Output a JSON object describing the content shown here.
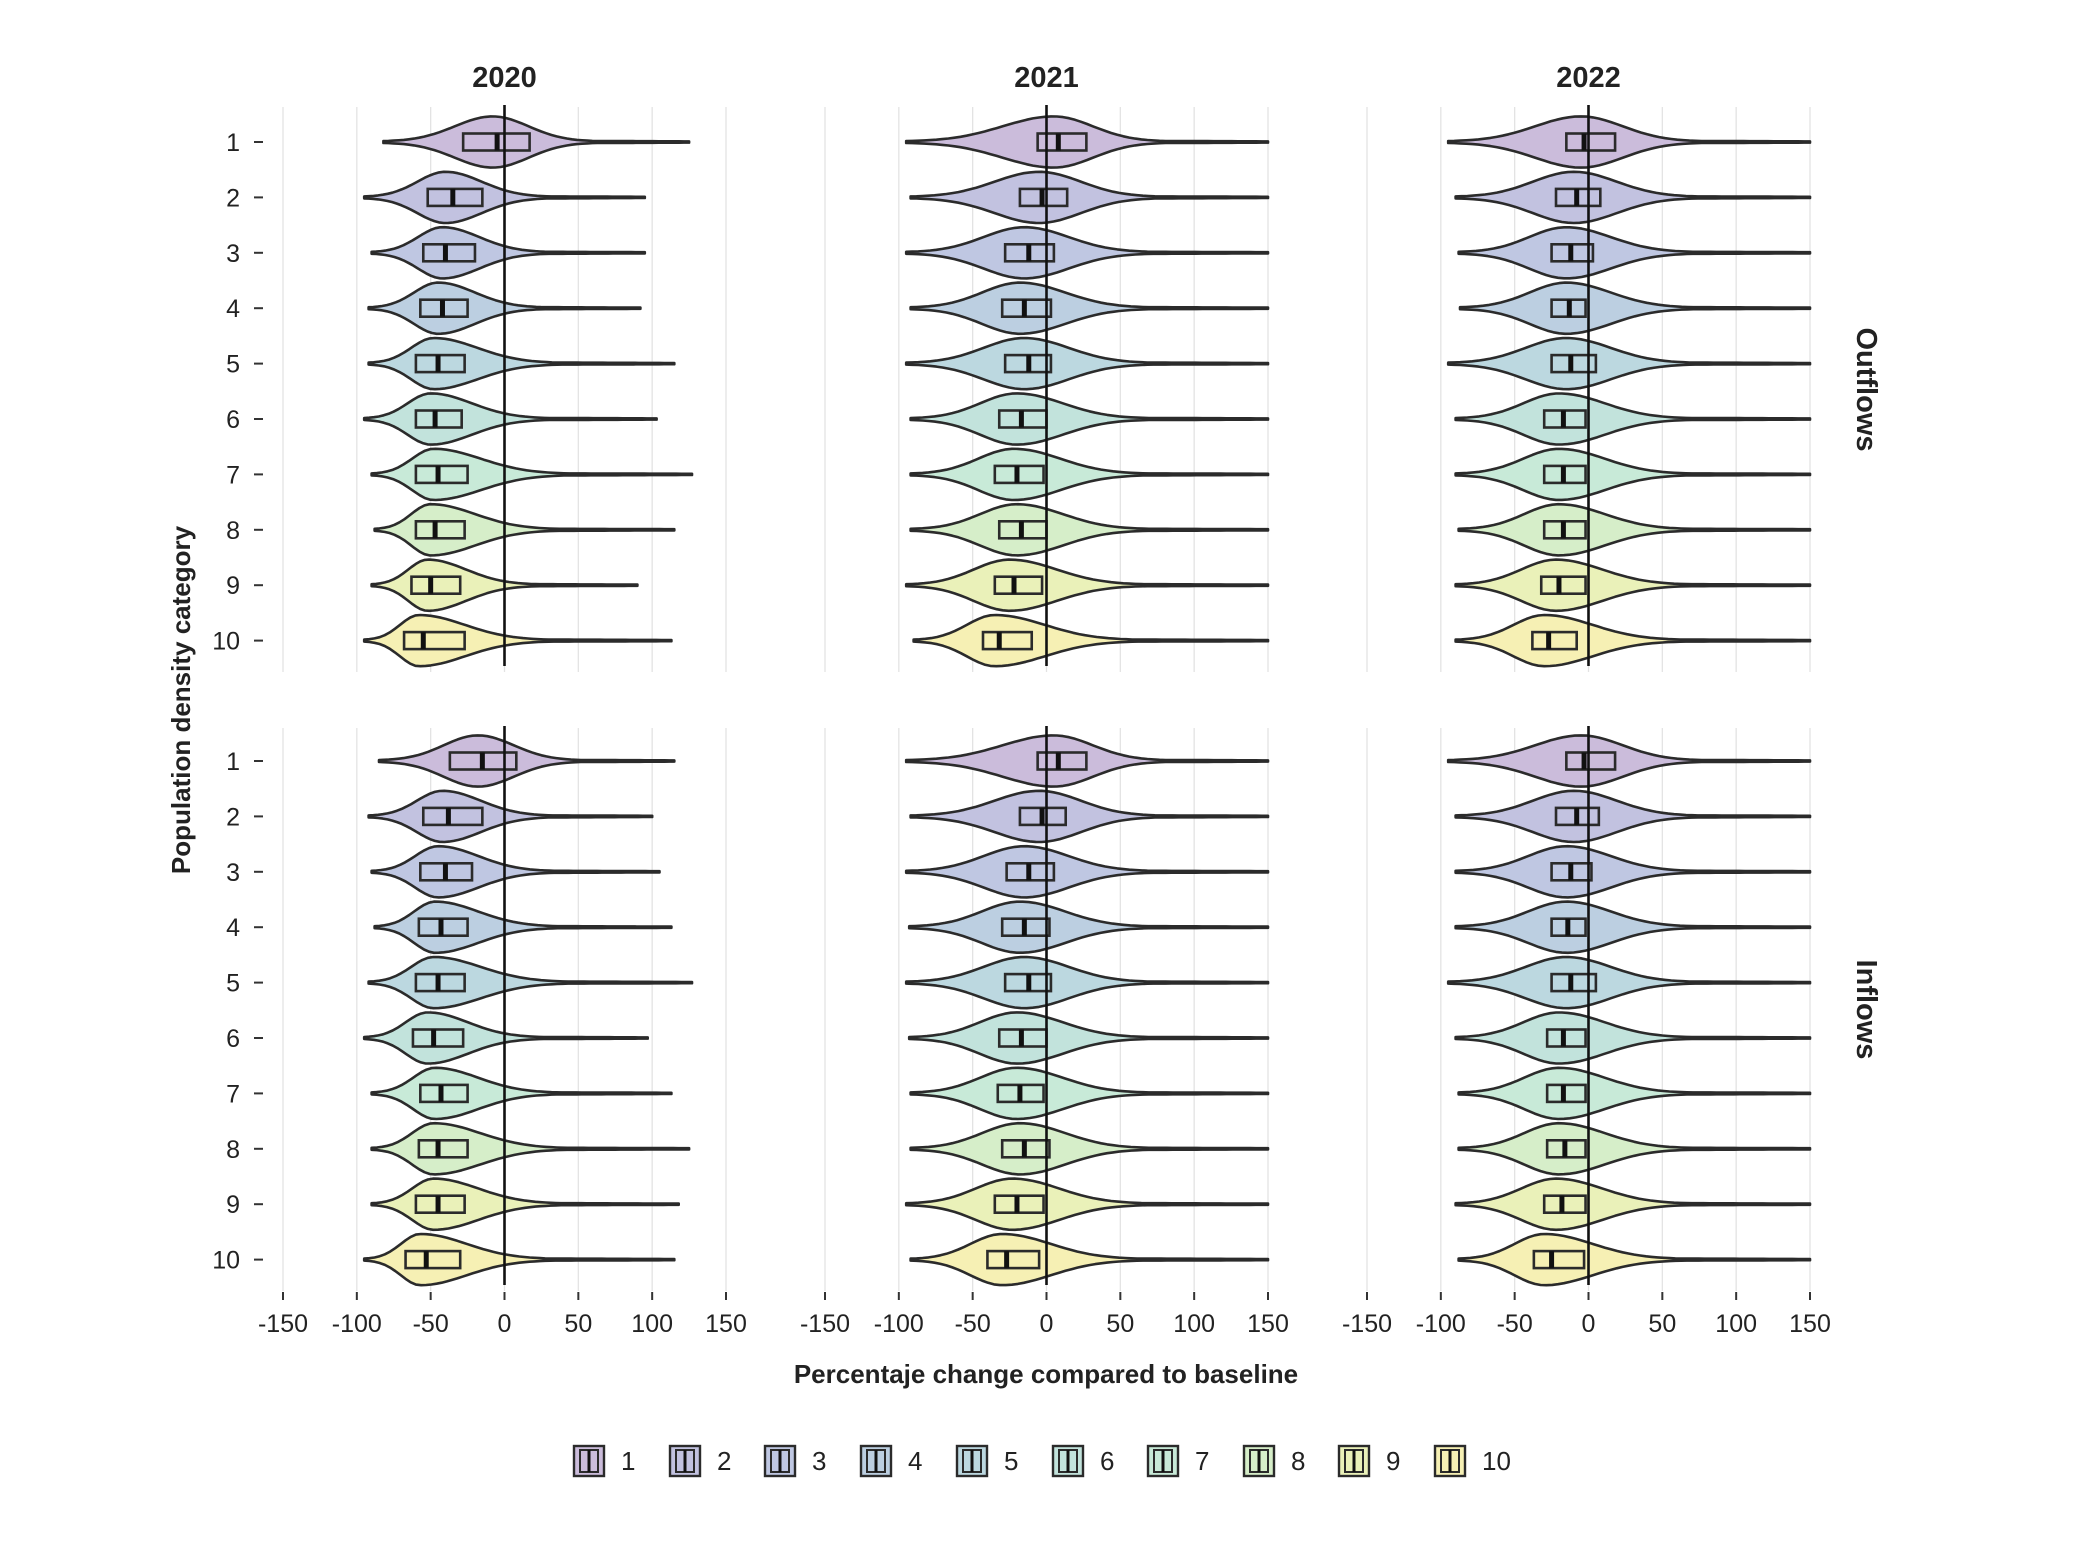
{
  "chart_data": {
    "type": "violin",
    "xlabel": "Percentaje change compared to baseline",
    "ylabel": "Population density category",
    "facet_columns": [
      "2020",
      "2021",
      "2022"
    ],
    "facet_rows": [
      "Outflows",
      "Inflows"
    ],
    "xlim": [
      -150,
      150
    ],
    "x_ticks": [
      -150,
      -100,
      -50,
      0,
      50,
      100,
      150
    ],
    "y_categories": [
      "1",
      "2",
      "3",
      "4",
      "5",
      "6",
      "7",
      "8",
      "9",
      "10"
    ],
    "grid": "vertical major gridlines",
    "reference_line_x": 0,
    "legend": {
      "position": "bottom",
      "entries": [
        "1",
        "2",
        "3",
        "4",
        "5",
        "6",
        "7",
        "8",
        "9",
        "10"
      ]
    },
    "colors": [
      "#cbbcdb",
      "#c2c2e0",
      "#bfc7e2",
      "#bccfe1",
      "#bcd8e0",
      "#c2e3dc",
      "#c8ead8",
      "#d6eec9",
      "#eaf1b9",
      "#f6f0b4"
    ],
    "panels": [
      {
        "year": "2020",
        "flow": "Outflows",
        "series": [
          {
            "category": "1",
            "min": -82,
            "q1": -28,
            "median": -5,
            "q3": 17,
            "max": 125,
            "mode": -8
          },
          {
            "category": "2",
            "min": -95,
            "q1": -52,
            "median": -35,
            "q3": -15,
            "max": 95,
            "mode": -40
          },
          {
            "category": "3",
            "min": -90,
            "q1": -55,
            "median": -40,
            "q3": -20,
            "max": 95,
            "mode": -42
          },
          {
            "category": "4",
            "min": -92,
            "q1": -57,
            "median": -42,
            "q3": -25,
            "max": 92,
            "mode": -45
          },
          {
            "category": "5",
            "min": -92,
            "q1": -60,
            "median": -45,
            "q3": -27,
            "max": 115,
            "mode": -48
          },
          {
            "category": "6",
            "min": -95,
            "q1": -60,
            "median": -47,
            "q3": -29,
            "max": 103,
            "mode": -50
          },
          {
            "category": "7",
            "min": -90,
            "q1": -60,
            "median": -45,
            "q3": -25,
            "max": 127,
            "mode": -48
          },
          {
            "category": "8",
            "min": -88,
            "q1": -60,
            "median": -47,
            "q3": -27,
            "max": 115,
            "mode": -50
          },
          {
            "category": "9",
            "min": -90,
            "q1": -63,
            "median": -50,
            "q3": -30,
            "max": 90,
            "mode": -52
          },
          {
            "category": "10",
            "min": -95,
            "q1": -68,
            "median": -55,
            "q3": -27,
            "max": 113,
            "mode": -58
          }
        ]
      },
      {
        "year": "2021",
        "flow": "Outflows",
        "series": [
          {
            "category": "1",
            "min": -95,
            "q1": -6,
            "median": 8,
            "q3": 27,
            "max": 150,
            "mode": 5
          },
          {
            "category": "2",
            "min": -92,
            "q1": -18,
            "median": -3,
            "q3": 14,
            "max": 150,
            "mode": -5
          },
          {
            "category": "3",
            "min": -95,
            "q1": -28,
            "median": -12,
            "q3": 5,
            "max": 150,
            "mode": -15
          },
          {
            "category": "4",
            "min": -92,
            "q1": -30,
            "median": -15,
            "q3": 3,
            "max": 150,
            "mode": -18
          },
          {
            "category": "5",
            "min": -95,
            "q1": -28,
            "median": -12,
            "q3": 3,
            "max": 150,
            "mode": -15
          },
          {
            "category": "6",
            "min": -92,
            "q1": -32,
            "median": -17,
            "q3": 0,
            "max": 150,
            "mode": -20
          },
          {
            "category": "7",
            "min": -92,
            "q1": -35,
            "median": -20,
            "q3": -2,
            "max": 150,
            "mode": -22
          },
          {
            "category": "8",
            "min": -92,
            "q1": -32,
            "median": -17,
            "q3": 0,
            "max": 150,
            "mode": -20
          },
          {
            "category": "9",
            "min": -95,
            "q1": -35,
            "median": -22,
            "q3": -3,
            "max": 150,
            "mode": -25
          },
          {
            "category": "10",
            "min": -90,
            "q1": -43,
            "median": -32,
            "q3": -10,
            "max": 150,
            "mode": -35
          }
        ]
      },
      {
        "year": "2022",
        "flow": "Outflows",
        "series": [
          {
            "category": "1",
            "min": -95,
            "q1": -15,
            "median": -3,
            "q3": 18,
            "max": 150,
            "mode": -5
          },
          {
            "category": "2",
            "min": -90,
            "q1": -22,
            "median": -8,
            "q3": 8,
            "max": 150,
            "mode": -10
          },
          {
            "category": "3",
            "min": -88,
            "q1": -25,
            "median": -12,
            "q3": 3,
            "max": 150,
            "mode": -15
          },
          {
            "category": "4",
            "min": -87,
            "q1": -25,
            "median": -13,
            "q3": -2,
            "max": 150,
            "mode": -15
          },
          {
            "category": "5",
            "min": -95,
            "q1": -25,
            "median": -12,
            "q3": 5,
            "max": 150,
            "mode": -15
          },
          {
            "category": "6",
            "min": -90,
            "q1": -30,
            "median": -17,
            "q3": -2,
            "max": 150,
            "mode": -20
          },
          {
            "category": "7",
            "min": -90,
            "q1": -30,
            "median": -17,
            "q3": -2,
            "max": 150,
            "mode": -20
          },
          {
            "category": "8",
            "min": -88,
            "q1": -30,
            "median": -17,
            "q3": -2,
            "max": 150,
            "mode": -20
          },
          {
            "category": "9",
            "min": -90,
            "q1": -32,
            "median": -20,
            "q3": -2,
            "max": 150,
            "mode": -22
          },
          {
            "category": "10",
            "min": -90,
            "q1": -38,
            "median": -27,
            "q3": -8,
            "max": 150,
            "mode": -30
          }
        ]
      },
      {
        "year": "2020",
        "flow": "Inflows",
        "series": [
          {
            "category": "1",
            "min": -85,
            "q1": -37,
            "median": -15,
            "q3": 8,
            "max": 115,
            "mode": -18
          },
          {
            "category": "2",
            "min": -92,
            "q1": -55,
            "median": -38,
            "q3": -15,
            "max": 100,
            "mode": -42
          },
          {
            "category": "3",
            "min": -90,
            "q1": -57,
            "median": -40,
            "q3": -22,
            "max": 105,
            "mode": -45
          },
          {
            "category": "4",
            "min": -88,
            "q1": -58,
            "median": -43,
            "q3": -25,
            "max": 113,
            "mode": -47
          },
          {
            "category": "5",
            "min": -92,
            "q1": -60,
            "median": -45,
            "q3": -27,
            "max": 127,
            "mode": -48
          },
          {
            "category": "6",
            "min": -95,
            "q1": -62,
            "median": -48,
            "q3": -28,
            "max": 97,
            "mode": -52
          },
          {
            "category": "7",
            "min": -90,
            "q1": -57,
            "median": -43,
            "q3": -25,
            "max": 113,
            "mode": -47
          },
          {
            "category": "8",
            "min": -90,
            "q1": -58,
            "median": -45,
            "q3": -25,
            "max": 125,
            "mode": -48
          },
          {
            "category": "9",
            "min": -90,
            "q1": -60,
            "median": -45,
            "q3": -27,
            "max": 118,
            "mode": -48
          },
          {
            "category": "10",
            "min": -95,
            "q1": -67,
            "median": -53,
            "q3": -30,
            "max": 115,
            "mode": -57
          }
        ]
      },
      {
        "year": "2021",
        "flow": "Inflows",
        "series": [
          {
            "category": "1",
            "min": -95,
            "q1": -6,
            "median": 8,
            "q3": 27,
            "max": 150,
            "mode": 5
          },
          {
            "category": "2",
            "min": -92,
            "q1": -18,
            "median": -3,
            "q3": 13,
            "max": 150,
            "mode": -5
          },
          {
            "category": "3",
            "min": -95,
            "q1": -27,
            "median": -12,
            "q3": 5,
            "max": 150,
            "mode": -15
          },
          {
            "category": "4",
            "min": -93,
            "q1": -30,
            "median": -15,
            "q3": 2,
            "max": 150,
            "mode": -18
          },
          {
            "category": "5",
            "min": -95,
            "q1": -28,
            "median": -12,
            "q3": 3,
            "max": 150,
            "mode": -15
          },
          {
            "category": "6",
            "min": -93,
            "q1": -32,
            "median": -17,
            "q3": 0,
            "max": 150,
            "mode": -20
          },
          {
            "category": "7",
            "min": -92,
            "q1": -33,
            "median": -18,
            "q3": -2,
            "max": 150,
            "mode": -20
          },
          {
            "category": "8",
            "min": -92,
            "q1": -30,
            "median": -15,
            "q3": 2,
            "max": 150,
            "mode": -18
          },
          {
            "category": "9",
            "min": -95,
            "q1": -35,
            "median": -20,
            "q3": -2,
            "max": 150,
            "mode": -23
          },
          {
            "category": "10",
            "min": -92,
            "q1": -40,
            "median": -27,
            "q3": -5,
            "max": 150,
            "mode": -30
          }
        ]
      },
      {
        "year": "2022",
        "flow": "Inflows",
        "series": [
          {
            "category": "1",
            "min": -95,
            "q1": -15,
            "median": -3,
            "q3": 18,
            "max": 150,
            "mode": -5
          },
          {
            "category": "2",
            "min": -90,
            "q1": -22,
            "median": -8,
            "q3": 7,
            "max": 150,
            "mode": -10
          },
          {
            "category": "3",
            "min": -90,
            "q1": -25,
            "median": -12,
            "q3": 2,
            "max": 150,
            "mode": -15
          },
          {
            "category": "4",
            "min": -90,
            "q1": -25,
            "median": -14,
            "q3": -2,
            "max": 150,
            "mode": -15
          },
          {
            "category": "5",
            "min": -95,
            "q1": -25,
            "median": -12,
            "q3": 5,
            "max": 150,
            "mode": -15
          },
          {
            "category": "6",
            "min": -90,
            "q1": -28,
            "median": -17,
            "q3": -2,
            "max": 150,
            "mode": -20
          },
          {
            "category": "7",
            "min": -88,
            "q1": -28,
            "median": -17,
            "q3": -2,
            "max": 150,
            "mode": -20
          },
          {
            "category": "8",
            "min": -88,
            "q1": -28,
            "median": -16,
            "q3": -2,
            "max": 150,
            "mode": -20
          },
          {
            "category": "9",
            "min": -90,
            "q1": -30,
            "median": -18,
            "q3": -2,
            "max": 150,
            "mode": -22
          },
          {
            "category": "10",
            "min": -88,
            "q1": -37,
            "median": -25,
            "q3": -3,
            "max": 150,
            "mode": -30
          }
        ]
      }
    ]
  }
}
